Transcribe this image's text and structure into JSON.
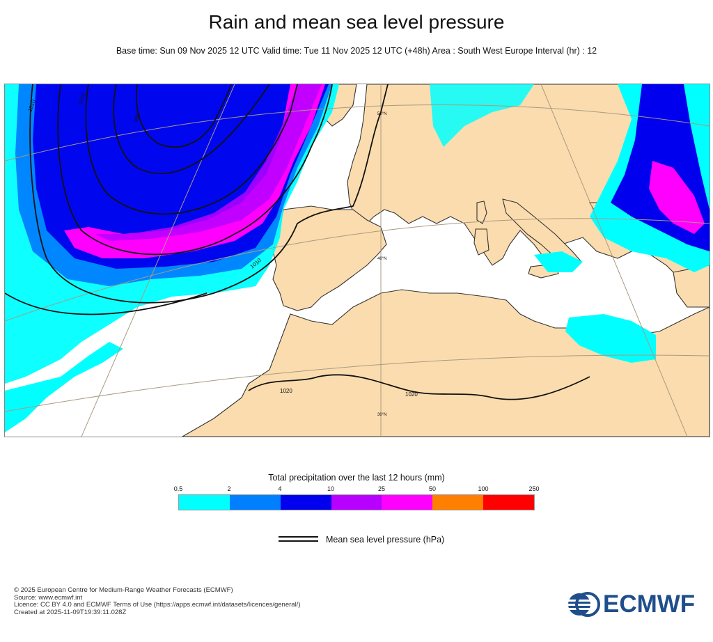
{
  "header": {
    "title": "Rain and mean sea level pressure",
    "subtitle": "Base time: Sun 09 Nov 2025 12 UTC Valid time: Tue 11 Nov 2025 12 UTC (+48h) Area : South West Europe Interval (hr) : 12"
  },
  "map": {
    "land_color": "#fbdcae",
    "sea_color": "#ffffff",
    "isobar_labels": [
      "1010",
      "1010",
      "990",
      "1010",
      "1020",
      "1020"
    ],
    "latitude_labels": [
      "50°N",
      "40°N",
      "30°N"
    ]
  },
  "legend": {
    "title": "Total precipitation over the last 12 hours (mm)",
    "ticks": [
      "0.5",
      "2",
      "4",
      "10",
      "25",
      "50",
      "100",
      "250"
    ],
    "colors": [
      "#00ffff",
      "#0080ff",
      "#0000ee",
      "#b700ff",
      "#ff00ff",
      "#ff7f00",
      "#ff0000"
    ],
    "mslp_label": "Mean sea level pressure (hPa)"
  },
  "footer": {
    "line1": "© 2025 European Centre for Medium-Range Weather Forecasts (ECMWF)",
    "line2": "Source: www.ecmwf.int",
    "line3": "Licence: CC BY 4.0 and ECMWF Terms of Use (https://apps.ecmwf.int/datasets/licences/general/)",
    "line4": "Created at 2025-11-09T19:39:11.028Z"
  },
  "logo": {
    "text": "ECMWF",
    "color": "#1f4e8c"
  }
}
